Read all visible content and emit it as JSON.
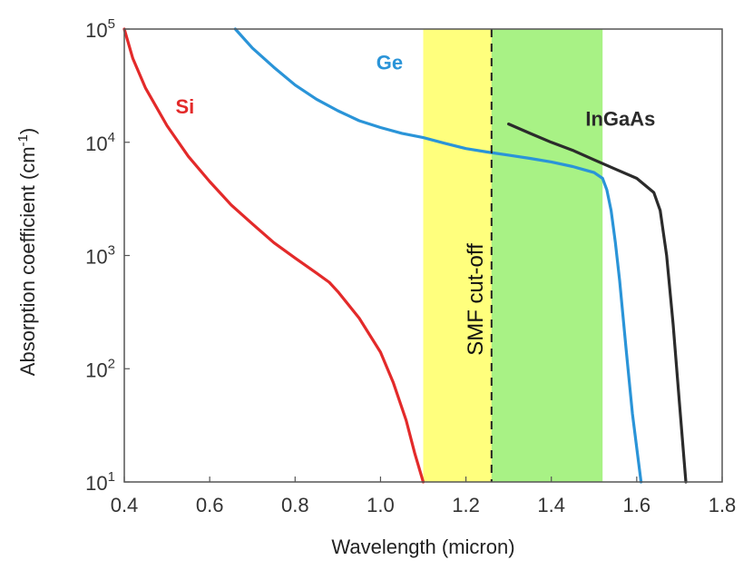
{
  "chart_data": {
    "type": "line",
    "title": "",
    "xlabel": "Wavelength (micron)",
    "ylabel": "Absorption coefficient (cm",
    "ylabel_sup": "-1",
    "ylabel_close": ")",
    "xlim": [
      0.4,
      1.8
    ],
    "ylim": [
      10,
      100000
    ],
    "yscale": "log",
    "grid": false,
    "x_ticks": [
      0.4,
      0.6,
      0.8,
      1.0,
      1.2,
      1.4,
      1.6,
      1.8
    ],
    "x_tick_labels": [
      "0.4",
      "0.6",
      "0.8",
      "1.0",
      "1.2",
      "1.4",
      "1.6",
      "1.8"
    ],
    "y_ticks": [
      {
        "value": 10,
        "base": "10",
        "exp": "1"
      },
      {
        "value": 100,
        "base": "10",
        "exp": "2"
      },
      {
        "value": 1000,
        "base": "10",
        "exp": "3"
      },
      {
        "value": 10000,
        "base": "10",
        "exp": "4"
      },
      {
        "value": 100000,
        "base": "10",
        "exp": "5"
      }
    ],
    "bands": [
      {
        "x0": 1.1,
        "x1": 1.26,
        "color": "#ffff66"
      },
      {
        "x0": 1.26,
        "x1": 1.52,
        "color": "#99f070"
      }
    ],
    "vline": {
      "x": 1.26,
      "label": "SMF cut-off",
      "color": "#222222"
    },
    "series": [
      {
        "name": "Si",
        "color": "#e32a2a",
        "label_at": [
          0.52,
          18000
        ],
        "points": [
          [
            0.4,
            100000
          ],
          [
            0.42,
            55000
          ],
          [
            0.45,
            30000
          ],
          [
            0.5,
            14000
          ],
          [
            0.55,
            7500
          ],
          [
            0.6,
            4500
          ],
          [
            0.65,
            2800
          ],
          [
            0.7,
            1900
          ],
          [
            0.75,
            1300
          ],
          [
            0.8,
            950
          ],
          [
            0.85,
            700
          ],
          [
            0.88,
            580
          ],
          [
            0.9,
            480
          ],
          [
            0.95,
            280
          ],
          [
            1.0,
            140
          ],
          [
            1.03,
            75
          ],
          [
            1.06,
            35
          ],
          [
            1.08,
            18
          ],
          [
            1.1,
            10
          ]
        ]
      },
      {
        "name": "Ge",
        "color": "#2a94d8",
        "label_at": [
          0.99,
          44000
        ],
        "points": [
          [
            0.66,
            100000
          ],
          [
            0.7,
            68000
          ],
          [
            0.75,
            46000
          ],
          [
            0.8,
            32000
          ],
          [
            0.85,
            24000
          ],
          [
            0.9,
            19000
          ],
          [
            0.95,
            15500
          ],
          [
            1.0,
            13500
          ],
          [
            1.05,
            12000
          ],
          [
            1.1,
            11000
          ],
          [
            1.15,
            9800
          ],
          [
            1.2,
            8800
          ],
          [
            1.25,
            8200
          ],
          [
            1.3,
            7700
          ],
          [
            1.35,
            7200
          ],
          [
            1.4,
            6700
          ],
          [
            1.45,
            6100
          ],
          [
            1.5,
            5400
          ],
          [
            1.52,
            4800
          ],
          [
            1.53,
            3800
          ],
          [
            1.54,
            2500
          ],
          [
            1.55,
            1300
          ],
          [
            1.56,
            600
          ],
          [
            1.575,
            150
          ],
          [
            1.59,
            40
          ],
          [
            1.61,
            10
          ]
        ]
      },
      {
        "name": "InGaAs",
        "color": "#2b2b2b",
        "label_at": [
          1.48,
          14000
        ],
        "points": [
          [
            1.3,
            14500
          ],
          [
            1.35,
            12000
          ],
          [
            1.4,
            10000
          ],
          [
            1.45,
            8500
          ],
          [
            1.5,
            7000
          ],
          [
            1.55,
            5800
          ],
          [
            1.6,
            4800
          ],
          [
            1.64,
            3600
          ],
          [
            1.655,
            2500
          ],
          [
            1.67,
            1000
          ],
          [
            1.685,
            250
          ],
          [
            1.7,
            50
          ],
          [
            1.715,
            10
          ]
        ]
      }
    ]
  }
}
